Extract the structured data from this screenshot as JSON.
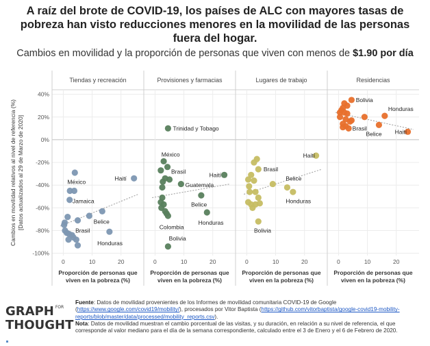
{
  "title": "A raíz del brote de COVID-19, los países de ALC con mayores tasas de pobreza han visto reducciones menores en la movilidad de las personas fuera del hogar.",
  "subtitle_prefix": "Cambios en movilidad y la proporción de personas que viven con menos de ",
  "subtitle_bold": "$1.90 por día",
  "footer": {
    "source_label": "Fuente",
    "source_text_1": ": Datos de movilidad provenientes de los Informes de movilidad comunitaria COVID-19 de Google (",
    "source_link_1": "https://www.google.com/covid19/mobility/",
    "source_text_2": "), procesados por Vitor Baptista (",
    "source_link_2": "https://github.com/vitorbaptista/google-covid19-mobility-reports/blob/master/data/processed/mobility_reports.csv",
    "source_text_3": ").",
    "note_label": "Nota",
    "note_text": ": Datos de movilidad muestran el cambio porcentual de las visitas, y su duración, en relación a su nivel de referencia, el que corresponde al valor mediano para el día de la semana correspondiente, calculado entre el 3 de Enero y el 6 de Febrero de 2020."
  },
  "logo": {
    "line1": "GRAPH",
    "for": "FOR",
    "line2": "THOUGHT"
  },
  "chart_data": {
    "type": "scatter",
    "ylabel": "Cambios en movilidad relativos al nivel de referencia (%)",
    "ylabel2": "[Datos actualizados al 29 de Marzo de 2020]",
    "xlabel": "Proporción de personas que viven en la pobreza (%)",
    "xlim": [
      -2,
      26
    ],
    "ylim": [
      -102,
      44
    ],
    "yticks": [
      40,
      20,
      0,
      -20,
      -40,
      -60,
      -80,
      -100
    ],
    "ytick_labels": [
      "40%",
      "20%",
      "0%",
      "-20%",
      "-40%",
      "-60%",
      "-80%",
      "-100%"
    ],
    "xticks": [
      0,
      10,
      20
    ],
    "xtick_labels": [
      "0",
      "10",
      "20"
    ],
    "grid": true,
    "panels": [
      {
        "name": "Tiendas y recreación",
        "color": "#7d97b2",
        "trend": [
          [
            -1,
            -76
          ],
          [
            26,
            -48
          ]
        ],
        "points": [
          {
            "x": 4,
            "y": -29
          },
          {
            "x": 2.3,
            "y": -45
          },
          {
            "x": 3.8,
            "y": -45
          },
          {
            "x": 2.2,
            "y": -53
          },
          {
            "x": 24.5,
            "y": -34
          },
          {
            "x": 9,
            "y": -67
          },
          {
            "x": 13.5,
            "y": -63
          },
          {
            "x": 1.5,
            "y": -68
          },
          {
            "x": 5,
            "y": -71
          },
          {
            "x": 0.5,
            "y": -73
          },
          {
            "x": 0.3,
            "y": -75
          },
          {
            "x": 0.6,
            "y": -80
          },
          {
            "x": 1.2,
            "y": -82
          },
          {
            "x": 2,
            "y": -83
          },
          {
            "x": 3,
            "y": -84
          },
          {
            "x": 3.5,
            "y": -86
          },
          {
            "x": 1.8,
            "y": -88
          },
          {
            "x": 4.5,
            "y": -88
          },
          {
            "x": 5,
            "y": -93
          },
          {
            "x": 16,
            "y": -81
          }
        ],
        "labels": [
          {
            "text": "México",
            "x": 1.4,
            "y": -37
          },
          {
            "text": "Jamaica",
            "x": 3.2,
            "y": -54
          },
          {
            "text": "Haití",
            "x": 17.8,
            "y": -34
          },
          {
            "text": "Belice",
            "x": 10.5,
            "y": -72
          },
          {
            "text": "Brasil",
            "x": 4.2,
            "y": -80
          },
          {
            "text": "Honduras",
            "x": 11.8,
            "y": -91
          }
        ]
      },
      {
        "name": "Provisiones y farmacias",
        "color": "#58805d",
        "trend": [
          [
            -1,
            -51
          ],
          [
            26,
            -39
          ]
        ],
        "points": [
          {
            "x": 4.5,
            "y": 10
          },
          {
            "x": 3,
            "y": -19
          },
          {
            "x": 4.3,
            "y": -24
          },
          {
            "x": 2,
            "y": -27
          },
          {
            "x": 3.5,
            "y": -34
          },
          {
            "x": 5,
            "y": -35
          },
          {
            "x": 9,
            "y": -39
          },
          {
            "x": 2.7,
            "y": -37
          },
          {
            "x": 2.5,
            "y": -42
          },
          {
            "x": 24,
            "y": -31
          },
          {
            "x": 16,
            "y": -49
          },
          {
            "x": 2.5,
            "y": -51
          },
          {
            "x": 2,
            "y": -55
          },
          {
            "x": 3,
            "y": -57
          },
          {
            "x": 2.2,
            "y": -60
          },
          {
            "x": 3.5,
            "y": -63
          },
          {
            "x": 4,
            "y": -65
          },
          {
            "x": 4.5,
            "y": -67
          },
          {
            "x": 18,
            "y": -64
          },
          {
            "x": 4.5,
            "y": -94
          }
        ],
        "labels": [
          {
            "text": "Trinidad y Tobago",
            "x": 6.2,
            "y": 10
          },
          {
            "text": "México",
            "x": 2.2,
            "y": -13
          },
          {
            "text": "Brasil",
            "x": 5.6,
            "y": -28
          },
          {
            "text": "Haití",
            "x": 18.8,
            "y": -31
          },
          {
            "text": "Guatemala",
            "x": 10.5,
            "y": -40
          },
          {
            "text": "Belice",
            "x": 12.5,
            "y": -57
          },
          {
            "text": "Honduras",
            "x": 15,
            "y": -73
          },
          {
            "text": "Colombia",
            "x": 1.5,
            "y": -77
          },
          {
            "text": "Bolivia",
            "x": 4.8,
            "y": -87
          }
        ]
      },
      {
        "name": "Lugares de trabajo",
        "color": "#c6bd63",
        "trend": [
          [
            -1,
            -48
          ],
          [
            26,
            -26
          ]
        ],
        "points": [
          {
            "x": 24,
            "y": -14
          },
          {
            "x": 3.5,
            "y": -17
          },
          {
            "x": 2.5,
            "y": -20
          },
          {
            "x": 4,
            "y": -26
          },
          {
            "x": 1.5,
            "y": -31
          },
          {
            "x": 0.5,
            "y": -35
          },
          {
            "x": 2.5,
            "y": -36
          },
          {
            "x": 9,
            "y": -39
          },
          {
            "x": 0.8,
            "y": -41
          },
          {
            "x": 14,
            "y": -42
          },
          {
            "x": 16,
            "y": -46
          },
          {
            "x": 1,
            "y": -46
          },
          {
            "x": 3,
            "y": -46
          },
          {
            "x": 4,
            "y": -51
          },
          {
            "x": 0.5,
            "y": -55
          },
          {
            "x": 1.5,
            "y": -57
          },
          {
            "x": 3,
            "y": -57
          },
          {
            "x": 4.5,
            "y": -56
          },
          {
            "x": 2,
            "y": -60
          },
          {
            "x": 4,
            "y": -72
          }
        ],
        "labels": [
          {
            "text": "Haití",
            "x": 19.5,
            "y": -14
          },
          {
            "text": "Brasil",
            "x": 5.8,
            "y": -26
          },
          {
            "text": "Belice",
            "x": 13.5,
            "y": -34
          },
          {
            "text": "Honduras",
            "x": 13.5,
            "y": -54
          },
          {
            "text": "Bolivia",
            "x": 2.5,
            "y": -80
          }
        ]
      },
      {
        "name": "Residencias",
        "color": "#e8702c",
        "trend": [
          [
            -1,
            24
          ],
          [
            26,
            9
          ]
        ],
        "points": [
          {
            "x": 4.5,
            "y": 35
          },
          {
            "x": 2,
            "y": 32
          },
          {
            "x": 3,
            "y": 30
          },
          {
            "x": 1.5,
            "y": 28
          },
          {
            "x": 0.5,
            "y": 24
          },
          {
            "x": 1,
            "y": 26
          },
          {
            "x": 2,
            "y": 24
          },
          {
            "x": 3,
            "y": 23
          },
          {
            "x": 0.5,
            "y": 20
          },
          {
            "x": 9,
            "y": 20
          },
          {
            "x": 16,
            "y": 21
          },
          {
            "x": 4.5,
            "y": 17
          },
          {
            "x": 1.5,
            "y": 14
          },
          {
            "x": 2.5,
            "y": 12
          },
          {
            "x": 1.5,
            "y": 11
          },
          {
            "x": 3.5,
            "y": 10
          },
          {
            "x": 14,
            "y": 13
          },
          {
            "x": 24,
            "y": 7
          },
          {
            "x": 4,
            "y": 16
          },
          {
            "x": 2.5,
            "y": 18
          }
        ],
        "labels": [
          {
            "text": "Bolivia",
            "x": 6,
            "y": 35
          },
          {
            "text": "Honduras",
            "x": 17.2,
            "y": 27
          },
          {
            "text": "Brasil",
            "x": 4.8,
            "y": 10
          },
          {
            "text": "Belice",
            "x": 9.5,
            "y": 5
          },
          {
            "text": "Haití",
            "x": 19.5,
            "y": 7
          }
        ]
      }
    ]
  }
}
